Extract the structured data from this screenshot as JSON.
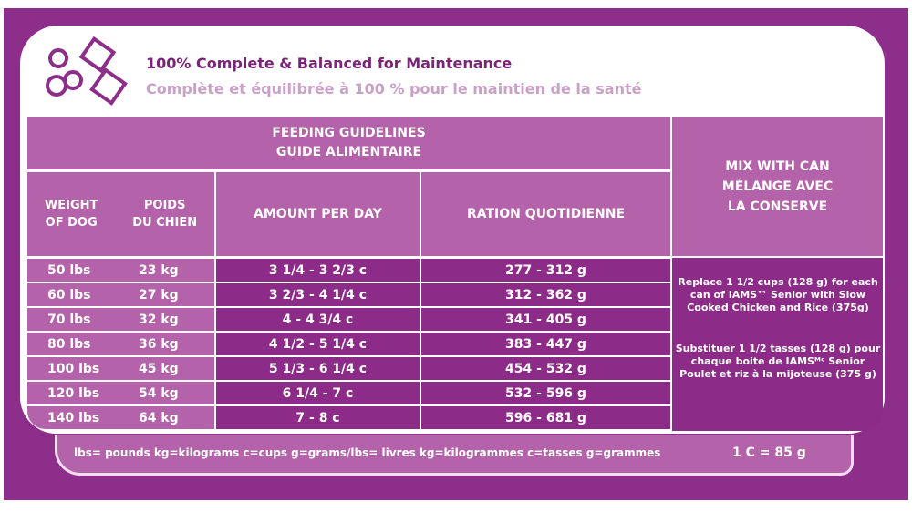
{
  "header": {
    "title_en": "100% Complete & Balanced for Maintenance",
    "title_fr": "Complète et équilibrée à 100 % pour le maintien de la santé",
    "icon": "kibble-and-cup-icon"
  },
  "table": {
    "title_en": "FEEDING GUIDELINES",
    "title_fr": "GUIDE ALIMENTAIRE",
    "col_weight_1": "WEIGHT",
    "col_weight_2": "OF DOG",
    "col_poids_1": "POIDS",
    "col_poids_2": "DU CHIEN",
    "col_amount": "AMOUNT PER DAY",
    "col_ration": "RATION QUOTIDIENNE",
    "mix_1": "MIX WITH CAN",
    "mix_2": "MÉLANGE AVEC",
    "mix_3": "LA CONSERVE",
    "rows": [
      {
        "lbs": "50 lbs",
        "kg": "23 kg",
        "amount": "3 1/4 - 3 2/3 c",
        "ration": "277 - 312 g"
      },
      {
        "lbs": "60 lbs",
        "kg": "27 kg",
        "amount": "3 2/3 - 4 1/4 c",
        "ration": "312 - 362 g"
      },
      {
        "lbs": "70 lbs",
        "kg": "32 kg",
        "amount": "4 - 4 3/4 c",
        "ration": "341 - 405 g"
      },
      {
        "lbs": "80 lbs",
        "kg": "36 kg",
        "amount": "4 1/2 - 5 1/4 c",
        "ration": "383 - 447 g"
      },
      {
        "lbs": "100 lbs",
        "kg": "45 kg",
        "amount": "5 1/3 - 6 1/4 c",
        "ration": "454 - 532 g"
      },
      {
        "lbs": "120 lbs",
        "kg": "54 kg",
        "amount": "6 1/4 - 7 c",
        "ration": "532 - 596 g"
      },
      {
        "lbs": "140 lbs",
        "kg": "64 kg",
        "amount": "7 - 8 c",
        "ration": "596 - 681 g"
      }
    ],
    "mix_note_en": "Replace 1 1/2 cups (128 g) for each can of IAMS™ Senior with Slow Cooked Chicken and Rice (375g)",
    "mix_note_fr": "Substituer 1 1/2 tasses (128 g) pour chaque boite de IAMSᴹᶜ Senior Poulet et riz à la mijoteuse (375 g)"
  },
  "footer": {
    "legend": "lbs= pounds kg=kilograms c=cups g=grams/lbs= livres kg=kilogrammes c=tasses g=grammes",
    "conversion": "1 C = 85 g"
  },
  "colors": {
    "purple": "#8e2e8b",
    "light_purple": "#b462aa",
    "title": "#7a2478"
  }
}
